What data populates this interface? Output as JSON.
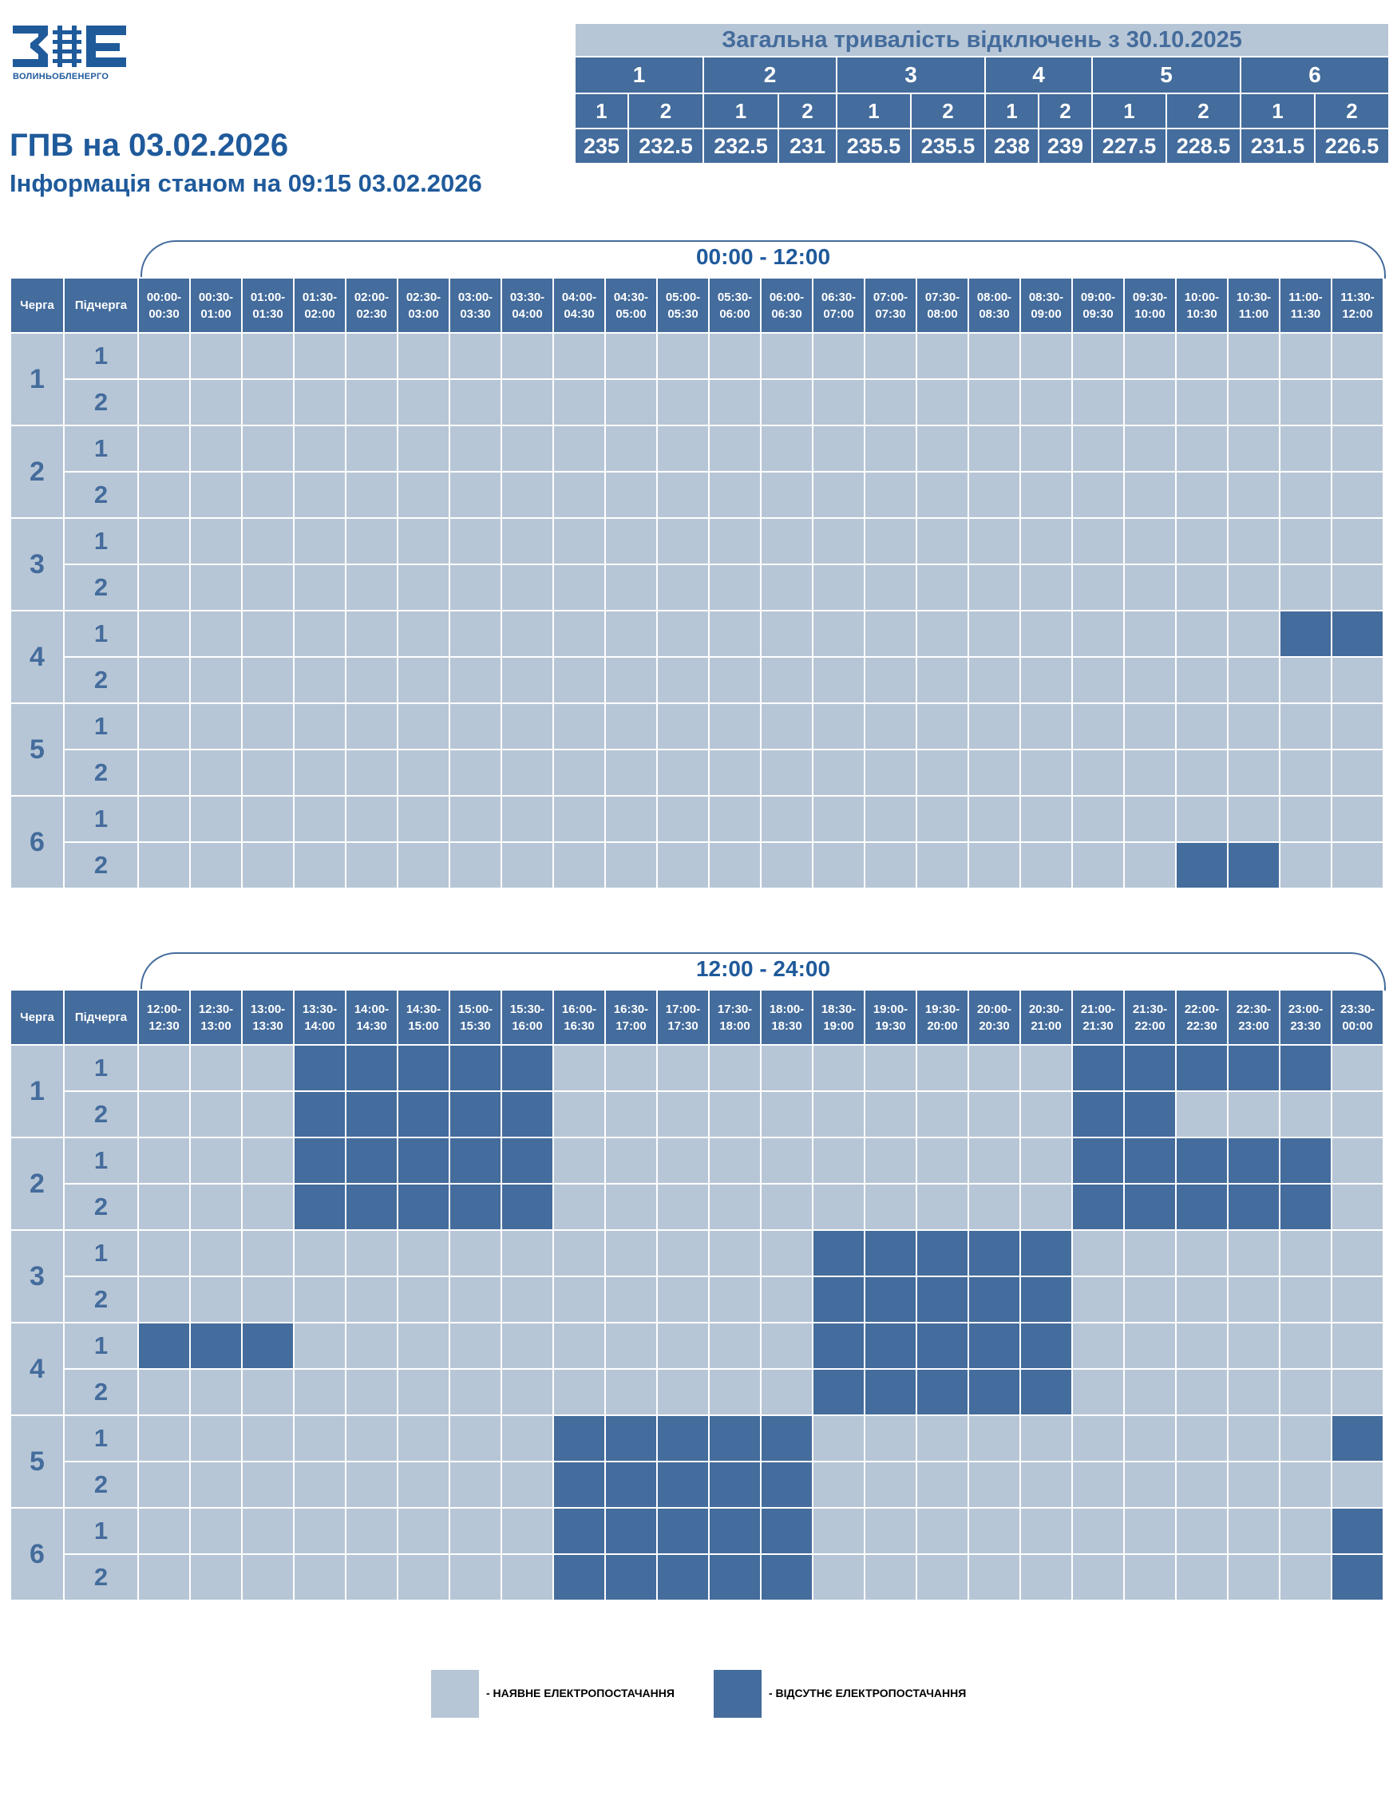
{
  "header": {
    "logo_caption": "ВОЛИНЬОБЛЕНЕРГО",
    "title": "ГПВ на 03.02.2026",
    "subtitle": "Інформація станом на 09:15 03.02.2026"
  },
  "colors": {
    "outage": "#446c9c",
    "power": "#b7c6d6",
    "text": "#1f5a9b"
  },
  "summary": {
    "title": "Загальна тривалість відключень з 30.10.2025",
    "queues": [
      "1",
      "2",
      "3",
      "4",
      "5",
      "6"
    ],
    "subqueues": [
      "1",
      "2",
      "1",
      "2",
      "1",
      "2",
      "1",
      "2",
      "1",
      "2",
      "1",
      "2"
    ],
    "values": [
      "235",
      "232.5",
      "232.5",
      "231",
      "235.5",
      "235.5",
      "238",
      "239",
      "227.5",
      "228.5",
      "231.5",
      "226.5"
    ]
  },
  "grid_labels": {
    "queue_header": "Черга",
    "subqueue_header": "Підчерга"
  },
  "periods": [
    {
      "label": "00:00 - 12:00",
      "slots": [
        "00:00-|00:30",
        "00:30-|01:00",
        "01:00-|01:30",
        "01:30-|02:00",
        "02:00-|02:30",
        "02:30-|03:00",
        "03:00-|03:30",
        "03:30-|04:00",
        "04:00-|04:30",
        "04:30-|05:00",
        "05:00-|05:30",
        "05:30-|06:00",
        "06:00-|06:30",
        "06:30-|07:00",
        "07:00-|07:30",
        "07:30-|08:00",
        "08:00-|08:30",
        "08:30-|09:00",
        "09:00-|09:30",
        "09:30-|10:00",
        "10:00-|10:30",
        "10:30-|11:00",
        "11:00-|11:30",
        "11:30-|12:00"
      ],
      "rows": [
        {
          "queue": "1",
          "sub": "1",
          "off": []
        },
        {
          "queue": "1",
          "sub": "2",
          "off": []
        },
        {
          "queue": "2",
          "sub": "1",
          "off": []
        },
        {
          "queue": "2",
          "sub": "2",
          "off": []
        },
        {
          "queue": "3",
          "sub": "1",
          "off": []
        },
        {
          "queue": "3",
          "sub": "2",
          "off": []
        },
        {
          "queue": "4",
          "sub": "1",
          "off": [
            22,
            23
          ]
        },
        {
          "queue": "4",
          "sub": "2",
          "off": []
        },
        {
          "queue": "5",
          "sub": "1",
          "off": []
        },
        {
          "queue": "5",
          "sub": "2",
          "off": []
        },
        {
          "queue": "6",
          "sub": "1",
          "off": []
        },
        {
          "queue": "6",
          "sub": "2",
          "off": [
            20,
            21
          ]
        }
      ]
    },
    {
      "label": "12:00 - 24:00",
      "slots": [
        "12:00-|12:30",
        "12:30-|13:00",
        "13:00-|13:30",
        "13:30-|14:00",
        "14:00-|14:30",
        "14:30-|15:00",
        "15:00-|15:30",
        "15:30-|16:00",
        "16:00-|16:30",
        "16:30-|17:00",
        "17:00-|17:30",
        "17:30-|18:00",
        "18:00-|18:30",
        "18:30-|19:00",
        "19:00-|19:30",
        "19:30-|20:00",
        "20:00-|20:30",
        "20:30-|21:00",
        "21:00-|21:30",
        "21:30-|22:00",
        "22:00-|22:30",
        "22:30-|23:00",
        "23:00-|23:30",
        "23:30-|00:00"
      ],
      "rows": [
        {
          "queue": "1",
          "sub": "1",
          "off": [
            3,
            4,
            5,
            6,
            7,
            18,
            19,
            20,
            21,
            22
          ]
        },
        {
          "queue": "1",
          "sub": "2",
          "off": [
            3,
            4,
            5,
            6,
            7,
            18,
            19
          ]
        },
        {
          "queue": "2",
          "sub": "1",
          "off": [
            3,
            4,
            5,
            6,
            7,
            18,
            19,
            20,
            21,
            22
          ]
        },
        {
          "queue": "2",
          "sub": "2",
          "off": [
            3,
            4,
            5,
            6,
            7,
            18,
            19,
            20,
            21,
            22
          ]
        },
        {
          "queue": "3",
          "sub": "1",
          "off": [
            13,
            14,
            15,
            16,
            17
          ]
        },
        {
          "queue": "3",
          "sub": "2",
          "off": [
            13,
            14,
            15,
            16,
            17
          ]
        },
        {
          "queue": "4",
          "sub": "1",
          "off": [
            0,
            1,
            2,
            13,
            14,
            15,
            16,
            17
          ]
        },
        {
          "queue": "4",
          "sub": "2",
          "off": [
            13,
            14,
            15,
            16,
            17
          ]
        },
        {
          "queue": "5",
          "sub": "1",
          "off": [
            8,
            9,
            10,
            11,
            12,
            23
          ]
        },
        {
          "queue": "5",
          "sub": "2",
          "off": [
            8,
            9,
            10,
            11,
            12
          ]
        },
        {
          "queue": "6",
          "sub": "1",
          "off": [
            8,
            9,
            10,
            11,
            12,
            23
          ]
        },
        {
          "queue": "6",
          "sub": "2",
          "off": [
            8,
            9,
            10,
            11,
            12,
            23
          ]
        }
      ]
    }
  ],
  "legend": {
    "power_label": "- НАЯВНЕ ЕЛЕКТРОПОСТАЧАННЯ",
    "outage_label": "- ВІДСУТНЄ ЕЛЕКТРОПОСТАЧАННЯ"
  }
}
